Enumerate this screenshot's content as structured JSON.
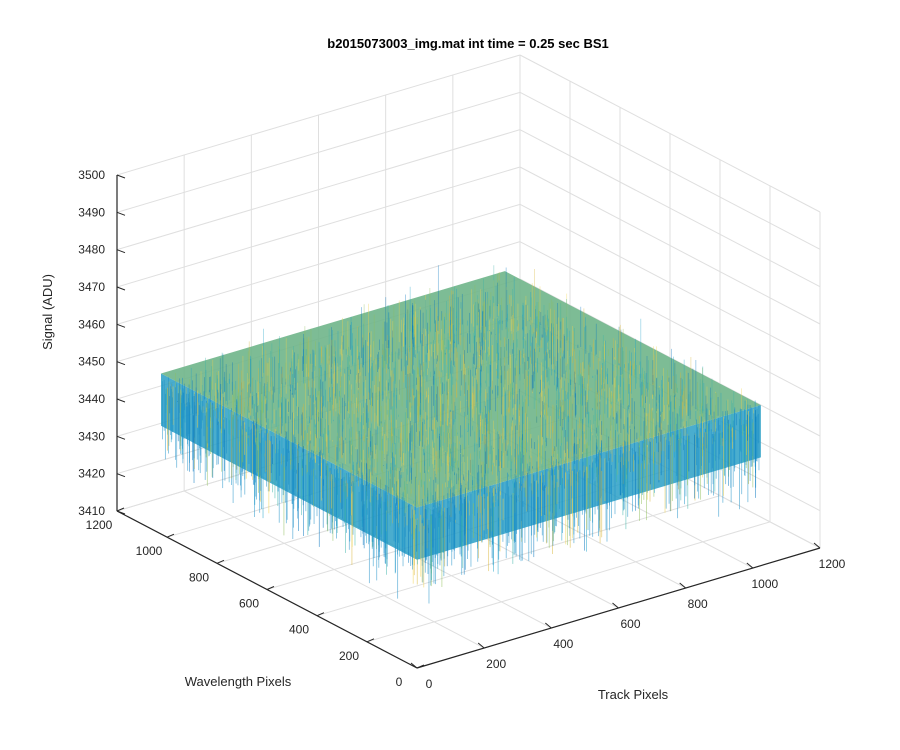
{
  "chart_data": {
    "type": "surface3d",
    "title": "b2015073003_img.mat int time = 0.25 sec   BS1",
    "xlabel": "Track Pixels",
    "ylabel": "Wavelength Pixels",
    "zlabel": "Signal (ADU)",
    "xlim": [
      0,
      1200
    ],
    "ylim": [
      0,
      1200
    ],
    "zlim": [
      3410,
      3500
    ],
    "xticks": [
      "0",
      "200",
      "400",
      "600",
      "800",
      "1000",
      "1200"
    ],
    "yticks": [
      "0",
      "200",
      "400",
      "600",
      "800",
      "1000",
      "1200"
    ],
    "zticks": [
      "3410",
      "3420",
      "3430",
      "3440",
      "3450",
      "3460",
      "3470",
      "3480",
      "3490",
      "3500"
    ],
    "grid": true,
    "surface": {
      "x_extent": [
        0,
        1024
      ],
      "y_extent": [
        0,
        1024
      ],
      "mean_signal": 3447,
      "noise_min": 3415,
      "noise_max": 3485,
      "colormap_colors": [
        "#0072bd",
        "#1aa0c8",
        "#3bb3a8",
        "#8fbf5a",
        "#d9b73a",
        "#f2d24a"
      ]
    }
  }
}
